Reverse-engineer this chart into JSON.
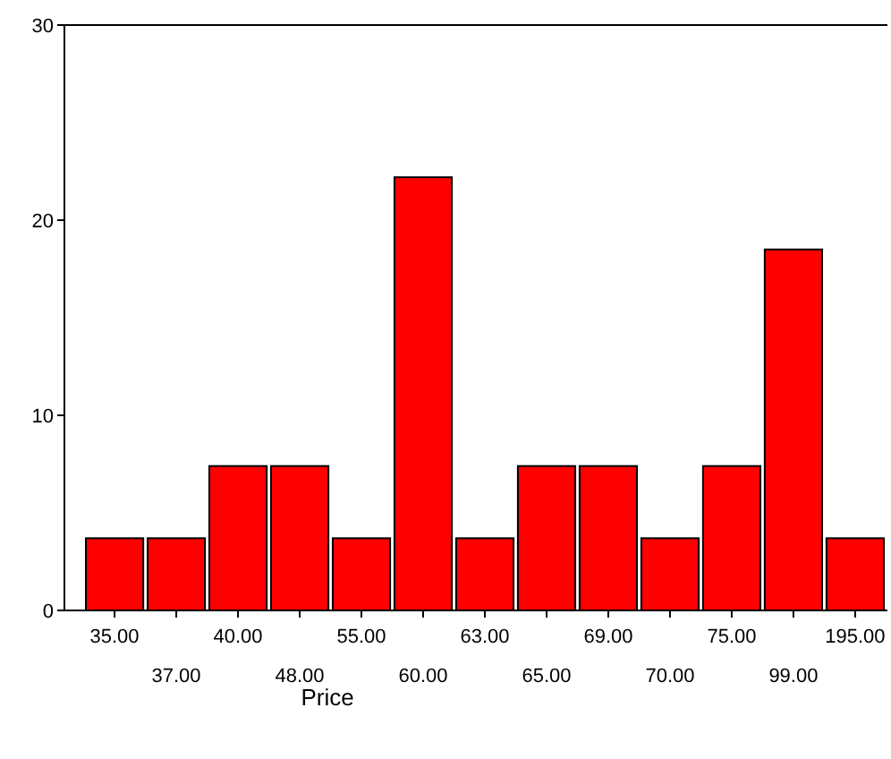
{
  "chart_data": {
    "type": "bar",
    "xlabel": "Price",
    "categories": [
      "35.00",
      "37.00",
      "40.00",
      "48.00",
      "55.00",
      "60.00",
      "63.00",
      "65.00",
      "69.00",
      "70.00",
      "75.00",
      "99.00",
      "195.00"
    ],
    "values": [
      3.7,
      3.7,
      7.4,
      7.4,
      3.7,
      22.2,
      3.7,
      7.4,
      7.4,
      3.7,
      7.4,
      18.5,
      3.7
    ],
    "color": "#ff0000",
    "ylim": [
      0,
      30
    ],
    "yticks": [
      0,
      10,
      20,
      30
    ],
    "grid": false
  }
}
